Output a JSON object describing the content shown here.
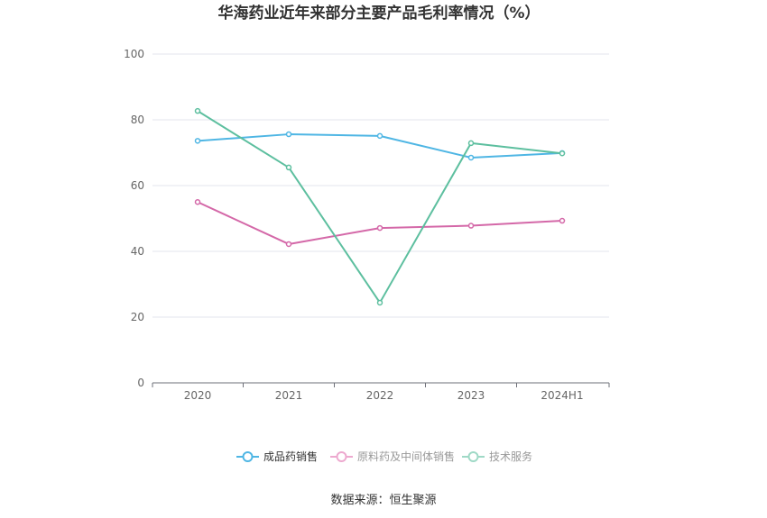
{
  "chart_data": {
    "type": "line",
    "title": "华海药业近年来部分主要产品毛利率情况（%）",
    "categories": [
      "2020",
      "2021",
      "2022",
      "2023",
      "2024H1"
    ],
    "ylim": [
      0,
      100
    ],
    "yticks": [
      0,
      20,
      40,
      60,
      80,
      100
    ],
    "grid": true,
    "legend_position": "bottom",
    "series": [
      {
        "name": "成品药销售",
        "color": "#4fb6e4",
        "values": [
          73.6,
          75.6,
          75.1,
          68.5,
          69.9
        ],
        "active": true
      },
      {
        "name": "原料药及中间体销售",
        "color": "#d468a8",
        "values": [
          55.0,
          42.2,
          47.1,
          47.8,
          49.3
        ],
        "active": false
      },
      {
        "name": "技术服务",
        "color": "#5dbf9f",
        "values": [
          82.7,
          65.5,
          24.4,
          72.9,
          69.8
        ],
        "active": false
      }
    ]
  },
  "source": "数据来源：恒生聚源"
}
